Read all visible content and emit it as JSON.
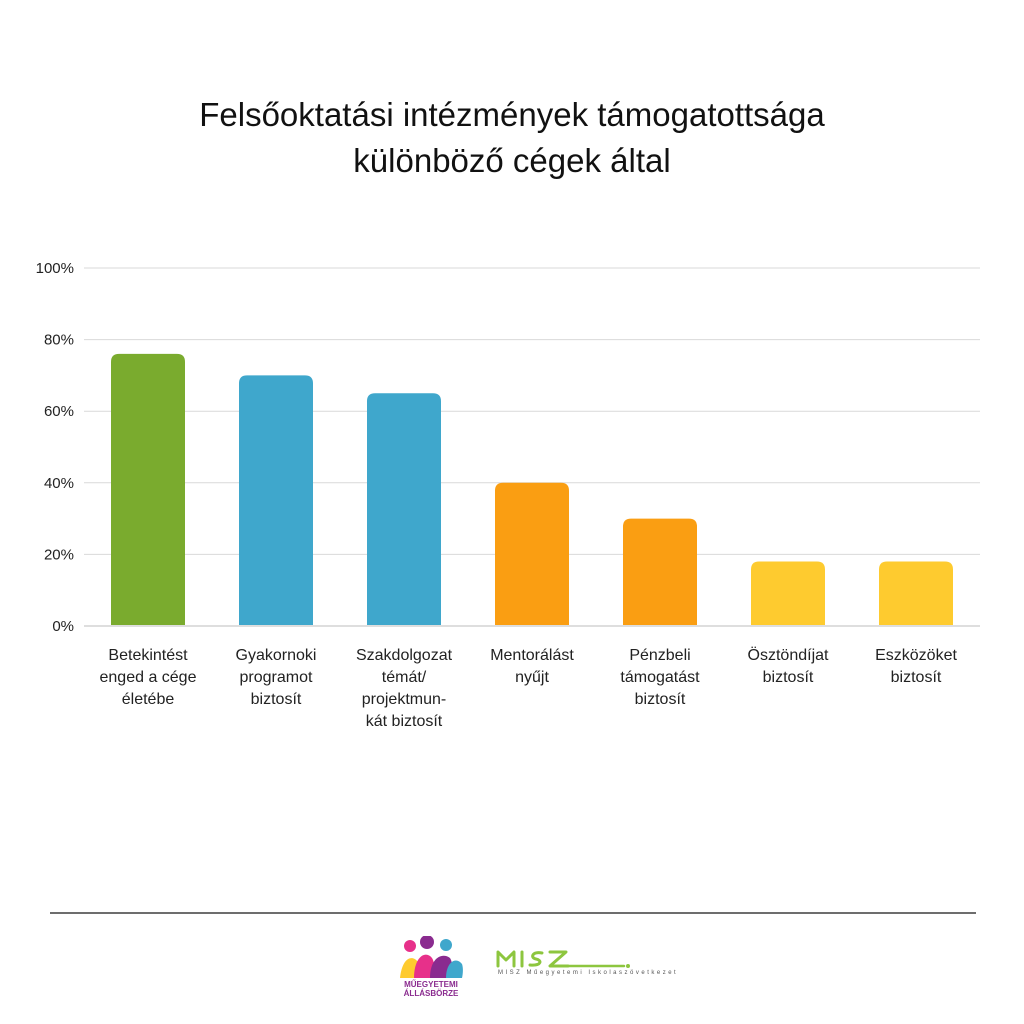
{
  "chart_data": {
    "type": "bar",
    "title": [
      "Felsőoktatási intézmények támogatottsága",
      "különböző cégek által"
    ],
    "categories": [
      [
        "Betekintést",
        "enged a cége",
        "életébe"
      ],
      [
        "Gyakornoki",
        "programot",
        "biztosít"
      ],
      [
        "Szakdolgozat",
        "témát/",
        "projektmun-",
        "kát biztosít"
      ],
      [
        "Mentorálást",
        "nyűjt"
      ],
      [
        "Pénzbeli",
        "támogatást",
        "biztosít"
      ],
      [
        "Ösztöndíjat",
        "biztosít"
      ],
      [
        "Eszközöket",
        "biztosít"
      ]
    ],
    "values": [
      76,
      70,
      65,
      40,
      30,
      18,
      18
    ],
    "colors": [
      "#7aab2e",
      "#3fa7cc",
      "#3fa7cc",
      "#fa9e12",
      "#fa9e12",
      "#fecb2f",
      "#fecb2f"
    ],
    "ylim": [
      0,
      100
    ],
    "yticks": [
      0,
      20,
      40,
      60,
      80,
      100
    ],
    "ytick_labels": [
      "0%",
      "20%",
      "40%",
      "60%",
      "80%",
      "100%"
    ],
    "grid": true,
    "xlabel": "",
    "ylabel": ""
  },
  "footer": {
    "logo_left_text": [
      "MŰEGYETEMI",
      "ÁLLÁSBÖRZE"
    ],
    "logo_right_sub": "MISZ Műegyetemi Iskolaszövetkezet",
    "logo_left_icon": "people-logo-icon",
    "logo_right_icon": "misz-logo-icon"
  }
}
